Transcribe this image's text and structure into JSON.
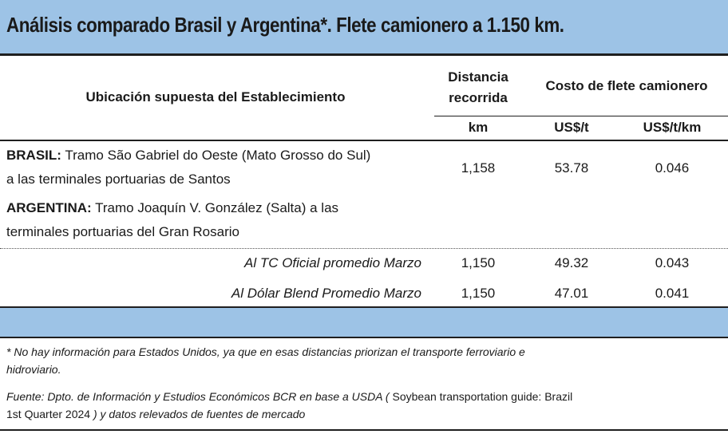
{
  "title": "Análisis comparado Brasil y Argentina*. Flete camionero a 1.150 km.",
  "header": {
    "location": "Ubicación supuesta del Establecimiento",
    "distance_line1": "Distancia",
    "distance_line2": "recorrida",
    "cost": "Costo de flete camionero",
    "unit_km": "km",
    "unit_ust": "US$/t",
    "unit_ustkm": "US$/t/km"
  },
  "rows": [
    {
      "country": "BRASIL:",
      "desc_line1": " Tramo São Gabriel do Oeste (Mato Grosso do Sul)",
      "desc_line2": "a las terminales portuarias de Santos",
      "km": "1,158",
      "ust": "53.78",
      "ustkm": "0.046"
    },
    {
      "country": "ARGENTINA:",
      "desc_line1": " Tramo Joaquín V. González (Salta) a las",
      "desc_line2": "terminales portuarias del Gran Rosario"
    }
  ],
  "sub_rows": [
    {
      "label": "Al TC Oficial promedio Marzo",
      "km": "1,150",
      "ust": "49.32",
      "ustkm": "0.043"
    },
    {
      "label": "Al Dólar Blend Promedio Marzo",
      "km": "1,150",
      "ust": "47.01",
      "ustkm": "0.041"
    }
  ],
  "notes": {
    "footnote_line1": "* No hay información para Estados Unidos, ya que en esas distancias priorizan el transporte ferroviario e",
    "footnote_line2": "hidroviario.",
    "source_italic1": "Fuente: Dpto. de Información y Estudios Económicos BCR en base a USDA (",
    "source_upright": " Soybean transportation guide: Brazil",
    "source_line2_upright": "1st Quarter 2024",
    "source_line2_italic": " ) y datos relevados de fuentes de mercado"
  }
}
